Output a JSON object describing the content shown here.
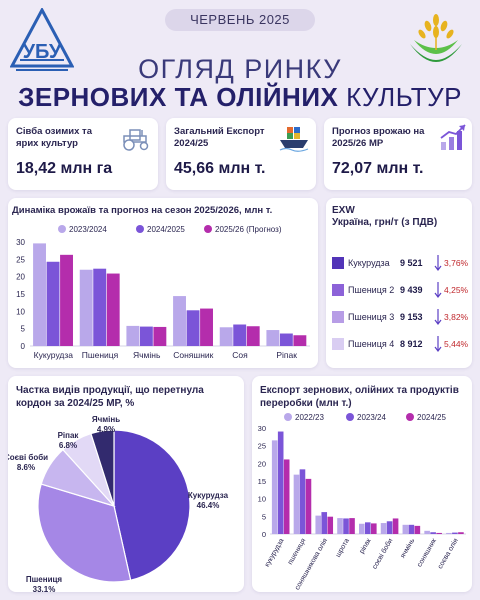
{
  "header": {
    "date": "ЧЕРВЕНЬ 2025",
    "title_line1": "ОГЛЯД РИНКУ",
    "title_line2_bold": "ЗЕРНОВИХ ТА ОЛІЙНИХ",
    "title_line2_regular": "КУЛЬТУР"
  },
  "kpis": [
    {
      "label": "Сівба озимих та ярих культур",
      "value": "18,42 млн га",
      "icon": "tractor-icon"
    },
    {
      "label": "Загальний Експорт 2024/25",
      "value": "45,66 млн т.",
      "icon": "cargo-ship-icon"
    },
    {
      "label": "Прогноз врожаю на 2025/26 МР",
      "value": "72,07 млн т.",
      "icon": "growth-chart-icon"
    }
  ],
  "colors": {
    "s1": "#b9a8ea",
    "s2": "#7b55d8",
    "s3": "#b42dac",
    "pie_dark": "#322a6e",
    "accent": "#5b3fc4",
    "down": "#c0282d"
  },
  "exw": {
    "title": "EXW",
    "subtitle": "Україна, грн/т (з ПДВ)",
    "rows": [
      {
        "name": "Кукурудза",
        "value": "9 521",
        "change": "3,76%",
        "color": "#5234b8"
      },
      {
        "name": "Пшениця 2",
        "value": "9 439",
        "change": "4,25%",
        "color": "#8c62d8"
      },
      {
        "name": "Пшениця 3",
        "value": "9 153",
        "change": "3,82%",
        "color": "#b79de6"
      },
      {
        "name": "Пшениця 4",
        "value": "8 912",
        "change": "5,44%",
        "color": "#d9cdf2"
      }
    ]
  },
  "chart_data": [
    {
      "type": "bar",
      "title": "Динаміка врожаїв та прогноз на сезон 2025/2026, млн т.",
      "categories": [
        "Кукурудза",
        "Пшениця",
        "Ячмінь",
        "Соняшник",
        "Соя",
        "Ріпак"
      ],
      "series": [
        {
          "name": "2023/2024",
          "values": [
            29.6,
            22.0,
            5.8,
            14.4,
            5.4,
            4.6
          ]
        },
        {
          "name": "2024/2025",
          "values": [
            24.3,
            22.3,
            5.6,
            10.3,
            6.2,
            3.6
          ]
        },
        {
          "name": "2025/26 (Прогноз)",
          "values": [
            26.3,
            20.9,
            5.5,
            10.8,
            5.7,
            3.1
          ]
        }
      ],
      "yticks": [
        0,
        5,
        10,
        15,
        20,
        25,
        30
      ],
      "ylim": [
        0,
        30
      ],
      "legend": "top",
      "grid": false
    },
    {
      "type": "pie",
      "title": "Частка видів продукції, що перетнула кордон за 2024/25 МР, %",
      "slices": [
        {
          "label": "Кукурудза",
          "value": 46.4,
          "display": "46.4%"
        },
        {
          "label": "Пшениця",
          "value": 33.1,
          "display": "33.1%"
        },
        {
          "label": "Соєві боби",
          "value": 8.6,
          "display": "8.6%"
        },
        {
          "label": "Ріпак",
          "value": 6.8,
          "display": "6.8%"
        },
        {
          "label": "Ячмінь",
          "value": 4.9,
          "display": "4.9%"
        }
      ]
    },
    {
      "type": "bar",
      "title": "Експорт зернових, олійних та продуктів переробки (млн т.)",
      "categories": [
        "кукурудза",
        "пшениця",
        "соняшникова олія",
        "шрота",
        "ріпак",
        "соєві боби",
        "ячмінь",
        "соняшник",
        "соєва олія"
      ],
      "series": [
        {
          "name": "2022/23",
          "values": [
            26.5,
            16.8,
            5.2,
            4.5,
            2.9,
            3.1,
            2.6,
            0.9,
            0.3
          ]
        },
        {
          "name": "2023/24",
          "values": [
            29.0,
            18.3,
            6.2,
            4.4,
            3.3,
            3.6,
            2.6,
            0.5,
            0.4
          ]
        },
        {
          "name": "2024/25",
          "values": [
            21.1,
            15.6,
            4.9,
            4.5,
            3.0,
            4.4,
            2.3,
            0.3,
            0.5
          ]
        }
      ],
      "yticks": [
        0,
        5,
        10,
        15,
        20,
        25,
        30
      ],
      "ylim": [
        0,
        30
      ],
      "legend": "top",
      "grid": false
    }
  ]
}
